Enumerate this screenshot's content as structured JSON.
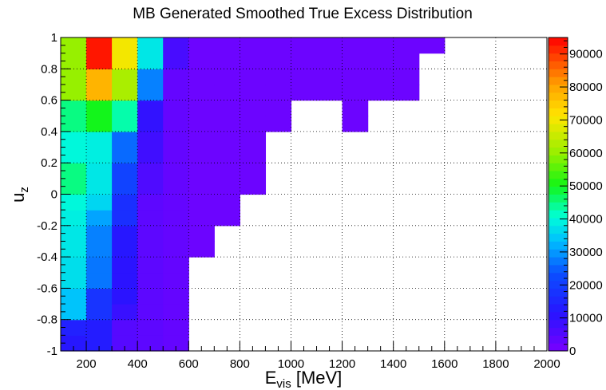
{
  "chart_data": {
    "type": "heatmap",
    "title": "MB Generated Smoothed True Excess Distribution",
    "xlabel_main": "E",
    "xlabel_sub": "vis",
    "xlabel_unit": " [MeV]",
    "ylabel_main": "u",
    "ylabel_sub": "z",
    "x_edges": [
      100,
      200,
      300,
      400,
      500,
      600,
      700,
      800,
      900,
      1000,
      1100,
      1200,
      1300,
      1400,
      1500,
      1600,
      1700,
      1800,
      1900,
      2000
    ],
    "y_edges": [
      -1,
      -0.9,
      -0.8,
      -0.7,
      -0.6,
      -0.5,
      -0.4,
      -0.3,
      -0.2,
      -0.1,
      0,
      0.1,
      0.2,
      0.3,
      0.4,
      0.5,
      0.6,
      0.7,
      0.8,
      0.9,
      1
    ],
    "xlim": [
      100,
      2000
    ],
    "ylim": [
      -1,
      1
    ],
    "x_ticks": [
      "200",
      "400",
      "600",
      "800",
      "1000",
      "1200",
      "1400",
      "1600",
      "1800",
      "2000"
    ],
    "y_ticks": [
      "-1",
      "-0.8",
      "-0.6",
      "-0.4",
      "-0.2",
      "0",
      "0.2",
      "0.4",
      "0.6",
      "0.8",
      "1"
    ],
    "z_range": [
      0,
      95000
    ],
    "z_ticks": [
      "0",
      "10000",
      "20000",
      "30000",
      "40000",
      "50000",
      "60000",
      "70000",
      "80000",
      "90000"
    ],
    "grid": true,
    "values": [
      [
        12000,
        13000,
        5000,
        4000,
        3000
      ],
      [
        14000,
        13000,
        5000,
        4000,
        3000
      ],
      [
        34000,
        18000,
        9000,
        4000,
        3000
      ],
      [
        34000,
        18000,
        11000,
        4000,
        3000
      ],
      [
        37000,
        27000,
        11000,
        4000,
        3000
      ],
      [
        37000,
        27000,
        11000,
        4000,
        3000
      ],
      [
        38000,
        28000,
        12000,
        4000,
        3000,
        2000
      ],
      [
        38000,
        28000,
        12000,
        4000,
        3000,
        2000
      ],
      [
        39000,
        31000,
        17000,
        4000,
        3000,
        2000,
        2000
      ],
      [
        40000,
        36000,
        17000,
        4000,
        3000,
        2000,
        2000
      ],
      [
        45000,
        38000,
        21000,
        6000,
        3000,
        2000,
        2000,
        2000
      ],
      [
        45000,
        38000,
        21000,
        6000,
        3000,
        2000,
        2000,
        2000
      ],
      [
        40000,
        39000,
        26000,
        8000,
        3000,
        2000,
        2000,
        2000
      ],
      [
        40000,
        39000,
        26000,
        8000,
        3000,
        2000,
        2000,
        2000
      ],
      [
        45000,
        50000,
        43000,
        10000,
        3000,
        2000,
        2000,
        2000,
        2000,
        null,
        null,
        2000,
        null,
        null
      ],
      [
        45000,
        50000,
        43000,
        10000,
        3000,
        2000,
        2000,
        2000,
        2000,
        null,
        null,
        2000,
        null,
        null
      ],
      [
        60000,
        78000,
        62000,
        28000,
        3000,
        2000,
        2000,
        2000,
        2000,
        2000,
        2000,
        2000,
        2000,
        2000
      ],
      [
        60000,
        78000,
        62000,
        28000,
        3000,
        2000,
        2000,
        2000,
        2000,
        2000,
        2000,
        2000,
        2000,
        2000
      ],
      [
        60000,
        93000,
        70000,
        38000,
        7000,
        2000,
        2000,
        2000,
        2000,
        2000,
        2000,
        2000,
        2000,
        2000
      ],
      [
        60000,
        93000,
        70000,
        38000,
        7000,
        2000,
        2000,
        2000,
        2000,
        2000,
        2000,
        2000,
        2000,
        2000,
        2000
      ]
    ]
  }
}
